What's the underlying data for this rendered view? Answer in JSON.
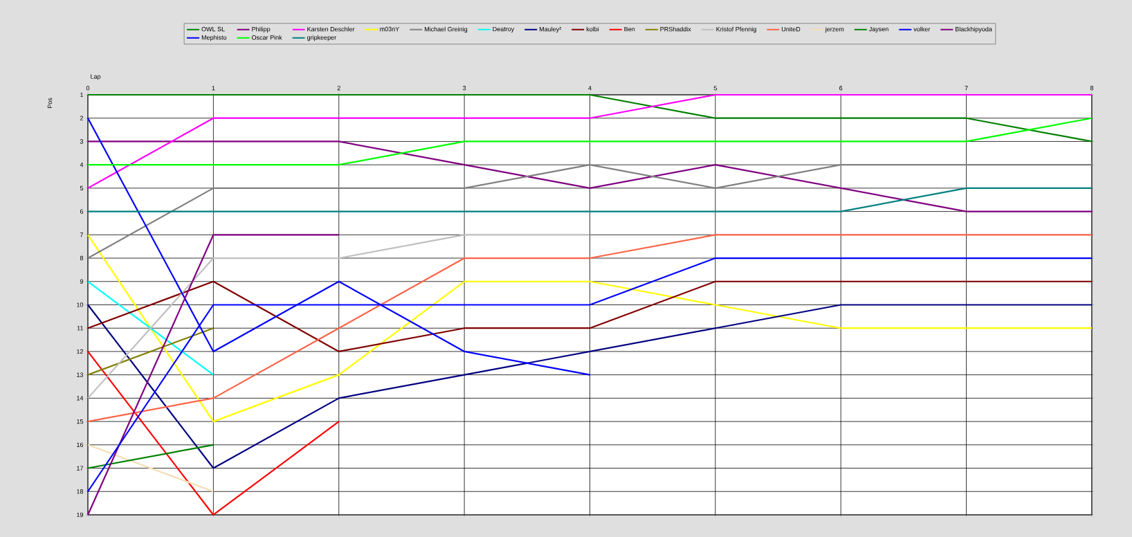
{
  "chart_data": {
    "type": "line",
    "xlabel": "Lap",
    "ylabel": "Pos",
    "x": [
      0,
      1,
      2,
      3,
      4,
      5,
      6,
      7,
      8
    ],
    "xlim": [
      0,
      8
    ],
    "xticks": [
      0,
      1,
      2,
      3,
      4,
      5,
      6,
      7,
      8
    ],
    "ylim": [
      19,
      1
    ],
    "yticks": [
      1,
      2,
      3,
      4,
      5,
      6,
      7,
      8,
      9,
      10,
      11,
      12,
      13,
      14,
      15,
      16,
      17,
      18,
      19
    ],
    "grid": true,
    "legend": "top",
    "series": [
      {
        "name": "OWL SL",
        "color": "#008000",
        "values": [
          1,
          1,
          1,
          1,
          1,
          2,
          2,
          2,
          3
        ]
      },
      {
        "name": "Philipp",
        "color": "#800080",
        "values": [
          3,
          3,
          3,
          4,
          5,
          4,
          5,
          6,
          6
        ]
      },
      {
        "name": "Karsten Deschler",
        "color": "#ff00ff",
        "values": [
          5,
          2,
          2,
          2,
          2,
          1,
          1,
          1,
          1
        ]
      },
      {
        "name": "m03nY",
        "color": "#ffff00",
        "values": [
          7,
          15,
          13,
          9,
          9,
          10,
          11,
          11,
          11
        ]
      },
      {
        "name": "Michael Greinig",
        "color": "#808080",
        "values": [
          8,
          5,
          5,
          5,
          4,
          5,
          4,
          4,
          4
        ]
      },
      {
        "name": "Deatroy",
        "color": "#00ffff",
        "values": [
          9,
          13,
          null,
          null,
          null,
          null,
          null,
          null,
          null
        ]
      },
      {
        "name": "Mauley²",
        "color": "#000080",
        "values": [
          10,
          17,
          14,
          13,
          12,
          11,
          10,
          10,
          10
        ]
      },
      {
        "name": "kolbi",
        "color": "#800000",
        "values": [
          11,
          9,
          12,
          11,
          11,
          9,
          9,
          9,
          9
        ]
      },
      {
        "name": "Ben",
        "color": "#ff0000",
        "values": [
          12,
          19,
          15,
          null,
          null,
          null,
          null,
          null,
          null
        ]
      },
      {
        "name": "PRShaddix",
        "color": "#808000",
        "values": [
          13,
          11,
          null,
          null,
          null,
          null,
          null,
          null,
          null
        ]
      },
      {
        "name": "Kristof Pfennig",
        "color": "#c0c0c0",
        "values": [
          14,
          8,
          8,
          7,
          7,
          null,
          null,
          null,
          null
        ]
      },
      {
        "name": "UniteD",
        "color": "#ff6347",
        "values": [
          15,
          14,
          11,
          8,
          8,
          7,
          7,
          7,
          7
        ]
      },
      {
        "name": "jerzem",
        "color": "#f5deb3",
        "values": [
          16,
          18,
          null,
          null,
          null,
          null,
          null,
          null,
          null
        ]
      },
      {
        "name": "Jaysen",
        "color": "#008000",
        "values": [
          17,
          16,
          null,
          null,
          null,
          null,
          null,
          null,
          null
        ]
      },
      {
        "name": "volker",
        "color": "#0000ff",
        "values": [
          2,
          12,
          9,
          12,
          13,
          null,
          null,
          null,
          null
        ]
      },
      {
        "name": "Blackhipyoda",
        "color": "#800080",
        "values": [
          19,
          7,
          7,
          null,
          null,
          null,
          null,
          null,
          null
        ]
      },
      {
        "name": "Mephisto",
        "color": "#0000ff",
        "values": [
          18,
          10,
          10,
          10,
          10,
          8,
          8,
          8,
          8
        ]
      },
      {
        "name": "Oscar Pink",
        "color": "#00ff00",
        "values": [
          4,
          4,
          4,
          3,
          3,
          3,
          3,
          3,
          2
        ]
      },
      {
        "name": "gripkeeper",
        "color": "#008080",
        "values": [
          6,
          6,
          6,
          6,
          6,
          6,
          6,
          5,
          5
        ]
      }
    ]
  }
}
